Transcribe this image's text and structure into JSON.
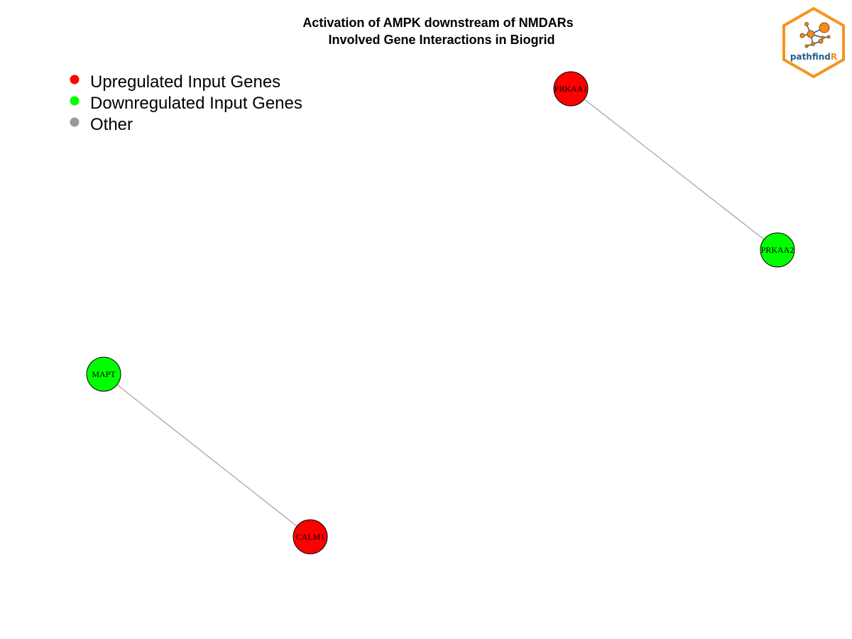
{
  "title": {
    "line1": "Activation of AMPK downstream of NMDARs",
    "line2": "Involved Gene Interactions in Biogrid"
  },
  "legend": [
    {
      "label": "Upregulated Input Genes",
      "color": "#ff0000"
    },
    {
      "label": "Downregulated Input Genes",
      "color": "#00ff00"
    },
    {
      "label": "Other",
      "color": "#999999"
    }
  ],
  "nodes": [
    {
      "id": "PRKAA1",
      "label": "PRKAA1",
      "status": "upregulated",
      "color": "#ff0000"
    },
    {
      "id": "PRKAA2",
      "label": "PRKAA2",
      "status": "downregulated",
      "color": "#00ff00"
    },
    {
      "id": "MAPT",
      "label": "MAPT",
      "status": "downregulated",
      "color": "#00ff00"
    },
    {
      "id": "CALM1",
      "label": "CALM1",
      "status": "upregulated",
      "color": "#ff0000"
    }
  ],
  "edges": [
    {
      "source": "PRKAA1",
      "target": "PRKAA2"
    },
    {
      "source": "MAPT",
      "target": "CALM1"
    }
  ],
  "logo": {
    "text_main": "pathfind",
    "text_accent": "R",
    "main_color": "#1f5f8b",
    "accent_color": "#f28c1b",
    "border_color": "#f7941d"
  },
  "colors": {
    "edge": "#a6a6a6",
    "node_stroke": "#000000"
  }
}
